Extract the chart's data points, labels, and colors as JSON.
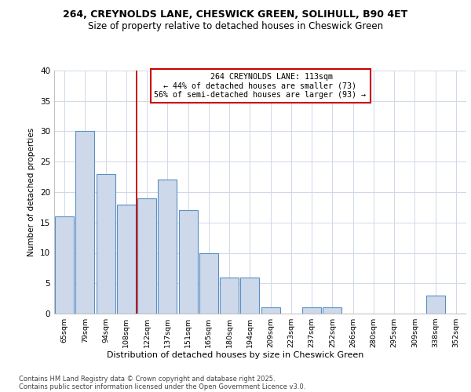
{
  "title1": "264, CREYNOLDS LANE, CHESWICK GREEN, SOLIHULL, B90 4ET",
  "title2": "Size of property relative to detached houses in Cheswick Green",
  "xlabel": "Distribution of detached houses by size in Cheswick Green",
  "ylabel": "Number of detached properties",
  "categories": [
    "65sqm",
    "79sqm",
    "94sqm",
    "108sqm",
    "122sqm",
    "137sqm",
    "151sqm",
    "165sqm",
    "180sqm",
    "194sqm",
    "209sqm",
    "223sqm",
    "237sqm",
    "252sqm",
    "266sqm",
    "280sqm",
    "295sqm",
    "309sqm",
    "338sqm",
    "352sqm"
  ],
  "values": [
    16,
    30,
    23,
    18,
    19,
    22,
    17,
    10,
    6,
    6,
    1,
    0,
    1,
    1,
    0,
    0,
    0,
    0,
    3,
    0
  ],
  "bar_color": "#cdd9ea",
  "bar_edge_color": "#5b8ec4",
  "vline_x": 3.5,
  "vline_color": "#cc0000",
  "annotation_title": "264 CREYNOLDS LANE: 113sqm",
  "annotation_line1": "← 44% of detached houses are smaller (73)",
  "annotation_line2": "56% of semi-detached houses are larger (93) →",
  "annotation_box_color": "#ffffff",
  "annotation_box_edge": "#cc0000",
  "ylim": [
    0,
    40
  ],
  "yticks": [
    0,
    5,
    10,
    15,
    20,
    25,
    30,
    35,
    40
  ],
  "footer1": "Contains HM Land Registry data © Crown copyright and database right 2025.",
  "footer2": "Contains public sector information licensed under the Open Government Licence v3.0.",
  "bg_color": "#ffffff",
  "plot_bg_color": "#ffffff",
  "grid_color": "#d0d8e8"
}
